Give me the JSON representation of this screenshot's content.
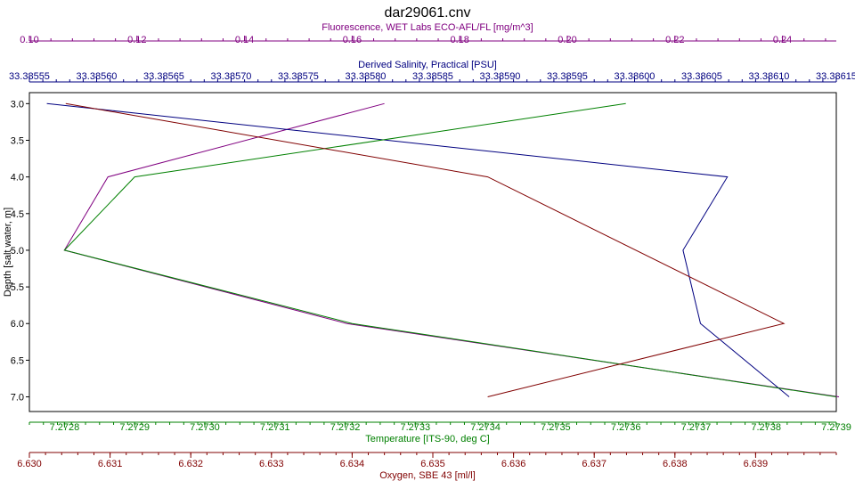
{
  "chart_data": {
    "type": "line",
    "title": "dar29061.cnv",
    "y_axis": {
      "label": "Depth [salt water, m]",
      "range": [
        2.85,
        7.2
      ],
      "ticks": [
        "3.0",
        "3.5",
        "4.0",
        "4.5",
        "5.0",
        "5.5",
        "6.0",
        "6.5",
        "7.0"
      ],
      "inverted": true
    },
    "x_axes": [
      {
        "id": "fluorescence",
        "position": "top-outer",
        "label": "Fluorescence, WET Labs ECO-AFL/FL [mg/m^3]",
        "color": "#800080",
        "range": [
          0.1,
          0.25
        ],
        "ticks": [
          "0.10",
          "0.12",
          "0.14",
          "0.16",
          "0.18",
          "0.20",
          "0.22",
          "0.24"
        ]
      },
      {
        "id": "salinity",
        "position": "top-inner",
        "label": "Derived Salinity, Practical [PSU]",
        "color": "#000080",
        "range": [
          33.38555,
          33.38615
        ],
        "ticks": [
          "33.38555",
          "33.38560",
          "33.38565",
          "33.38570",
          "33.38575",
          "33.38580",
          "33.38585",
          "33.38590",
          "33.38595",
          "33.38600",
          "33.38605",
          "33.38610",
          "33.38615"
        ]
      },
      {
        "id": "temperature",
        "position": "bottom-inner",
        "label": "Temperature [ITS-90, deg C]",
        "color": "#008000",
        "range": [
          7.27275,
          7.2739
        ],
        "ticks": [
          "7.2728",
          "7.2729",
          "7.2730",
          "7.2731",
          "7.2732",
          "7.2733",
          "7.2734",
          "7.2735",
          "7.2736",
          "7.2737",
          "7.2738",
          "7.2739"
        ]
      },
      {
        "id": "oxygen",
        "position": "bottom-outer",
        "label": "Oxygen, SBE 43 [ml/l]",
        "color": "#800000",
        "range": [
          6.63,
          6.64
        ],
        "ticks": [
          "6.630",
          "6.631",
          "6.632",
          "6.633",
          "6.634",
          "6.635",
          "6.636",
          "6.637",
          "6.638",
          "6.639"
        ]
      }
    ],
    "series": [
      {
        "axis": "fluorescence",
        "color": "#800080",
        "points": [
          [
            0.166,
            3.0
          ],
          [
            0.1146,
            4.0
          ],
          [
            0.1065,
            5.0
          ],
          [
            0.159,
            6.0
          ],
          [
            0.2505,
            7.0
          ]
        ]
      },
      {
        "axis": "salinity",
        "color": "#000080",
        "points": [
          [
            33.385563,
            3.0
          ],
          [
            33.386069,
            4.0
          ],
          [
            33.386036,
            5.0
          ],
          [
            33.386049,
            6.0
          ],
          [
            33.386115,
            7.0
          ]
        ]
      },
      {
        "axis": "temperature",
        "color": "#008000",
        "points": [
          [
            7.2736,
            3.0
          ],
          [
            7.2729,
            4.0
          ],
          [
            7.2728,
            5.0
          ],
          [
            7.27321,
            6.0
          ],
          [
            7.2739,
            7.0
          ]
        ]
      },
      {
        "axis": "oxygen",
        "color": "#800000",
        "points": [
          [
            6.63045,
            3.0
          ],
          [
            6.63568,
            4.0
          ],
          [
            6.63935,
            6.0
          ],
          [
            6.63568,
            7.0
          ]
        ]
      }
    ]
  }
}
